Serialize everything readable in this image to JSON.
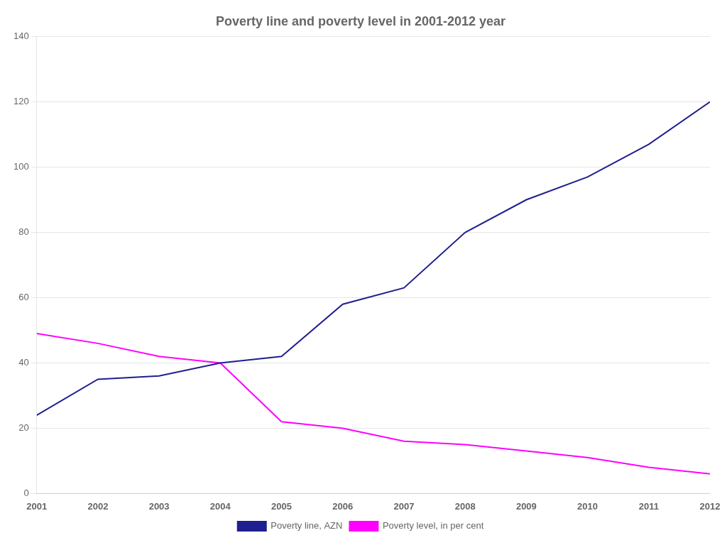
{
  "chart_data": {
    "type": "line",
    "title": "Poverty line and poverty level in 2001-2012 year",
    "x": [
      2001,
      2002,
      2003,
      2004,
      2005,
      2006,
      2007,
      2008,
      2009,
      2010,
      2011,
      2012
    ],
    "series": [
      {
        "name": "Poverty line, AZN",
        "color": "#1F1F8F",
        "values": [
          24,
          35,
          36,
          40,
          42,
          58,
          63,
          80,
          90,
          97,
          107,
          120
        ]
      },
      {
        "name": "Poverty level, in per cent",
        "color": "#FF00FF",
        "values": [
          49,
          46,
          42,
          40,
          22,
          20,
          16,
          15,
          13,
          11,
          8,
          6
        ]
      }
    ],
    "xlim": [
      2001,
      2012
    ],
    "xticks": [
      2001,
      2002,
      2003,
      2004,
      2005,
      2006,
      2007,
      2008,
      2009,
      2010,
      2011,
      2012
    ],
    "ylim": [
      0,
      140
    ],
    "yticks": [
      0,
      20,
      40,
      60,
      80,
      100,
      120,
      140
    ],
    "grid": "y",
    "legend": "bottom",
    "marker": "none"
  }
}
